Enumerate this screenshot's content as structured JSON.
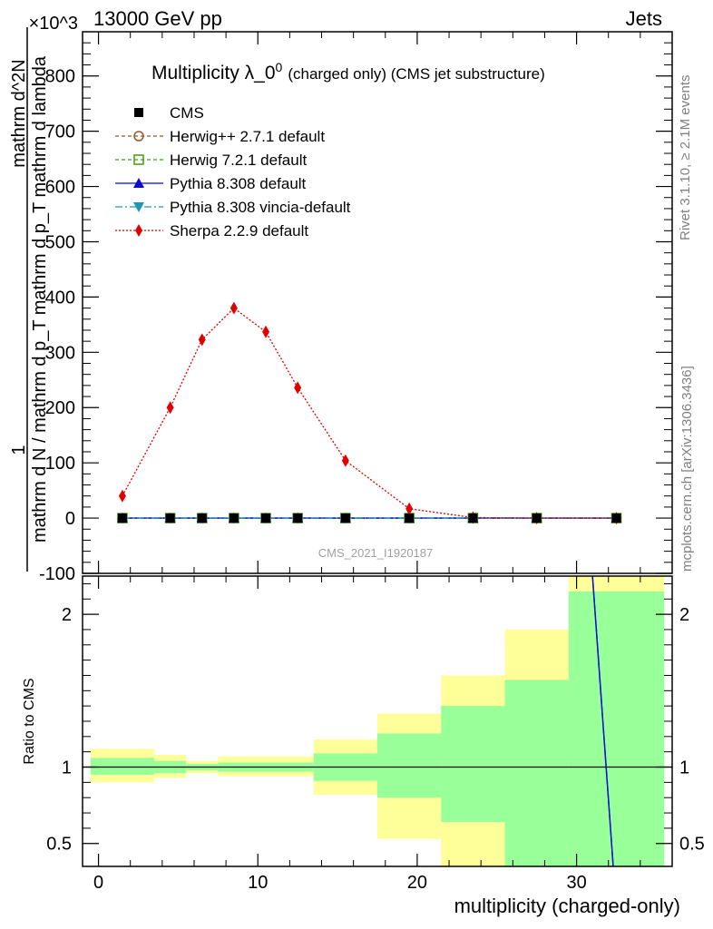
{
  "header": {
    "left": "13000 GeV pp",
    "right": "Jets"
  },
  "side_labels": {
    "rivet": "Rivet 3.1.10, ≥ 2.1M events",
    "mcplots": "mcplots.cern.ch [arXiv:1306.3436]"
  },
  "watermark": "CMS_2021_I1920187",
  "colors": {
    "cms": "#000000",
    "herwigpp": "#a0522d",
    "herwig7": "#4a9a0a",
    "pythia": "#0a0ad0",
    "vincia": "#1a9ab0",
    "sherpa": "#e00000",
    "band_outer": "#ffff99",
    "band_inner": "#99ff99"
  },
  "chart_data": [
    {
      "type": "line",
      "title_main": "Multiplicity λ_0",
      "title_sup": "0",
      "title_sub": "(charged only) (CMS jet substructure)",
      "ylabel_top": "1",
      "ylabel_bottom": "mathrm d N / mathrm d p_T mathrm d p_T mathrm d lambda",
      "ylabel_top2": "mathrm d^2N",
      "y_exponent": "×10^3",
      "ylim": [
        -100,
        880
      ],
      "yticks": [
        -100,
        0,
        100,
        200,
        300,
        400,
        500,
        600,
        700,
        800
      ],
      "xlim": [
        -1,
        36
      ],
      "x": [
        1.5,
        4.5,
        6.5,
        8.5,
        10.5,
        12.5,
        15.5,
        19.5,
        23.5,
        27.5,
        32.5
      ],
      "series": [
        {
          "name": "CMS",
          "marker": "square-filled",
          "values": [
            0,
            0,
            0,
            0,
            0,
            0,
            0,
            0,
            0,
            0,
            0
          ]
        },
        {
          "name": "Herwig++ 2.7.1 default",
          "marker": "circle-open",
          "values": [
            0,
            0,
            0,
            0,
            0,
            0,
            0,
            0,
            0,
            0,
            0
          ]
        },
        {
          "name": "Herwig 7.2.1 default",
          "marker": "square-open",
          "values": [
            0,
            0,
            0,
            0,
            0,
            0,
            0,
            0,
            0,
            0,
            0
          ]
        },
        {
          "name": "Pythia 8.308 default",
          "marker": "triangle-up",
          "values": [
            0,
            0,
            0,
            0,
            0,
            0,
            0,
            0,
            0,
            0,
            0
          ]
        },
        {
          "name": "Pythia 8.308 vincia-default",
          "marker": "triangle-down",
          "values": [
            0,
            0,
            0,
            0,
            0,
            0,
            0,
            0,
            0,
            0,
            0
          ]
        },
        {
          "name": "Sherpa 2.2.9 default",
          "marker": "diamond",
          "values": [
            40,
            200,
            323,
            380,
            337,
            236,
            104,
            17,
            1,
            0,
            0
          ]
        }
      ]
    },
    {
      "type": "area",
      "ylabel": "Ratio to CMS",
      "xlabel": "multiplicity (charged-only)",
      "ylim": [
        0.35,
        2.25
      ],
      "yticks": [
        0.5,
        1,
        2
      ],
      "ytick_labels": [
        "0.5",
        "1",
        "2"
      ],
      "xticks": [
        0,
        10,
        20,
        30
      ],
      "xtick_labels": [
        "0",
        "10",
        "20",
        "30"
      ],
      "bins": [
        {
          "lo": -0.5,
          "hi": 3.5,
          "outer": [
            0.9,
            1.12
          ],
          "inner": [
            0.95,
            1.06
          ]
        },
        {
          "lo": 3.5,
          "hi": 5.5,
          "outer": [
            0.93,
            1.08
          ],
          "inner": [
            0.96,
            1.04
          ]
        },
        {
          "lo": 5.5,
          "hi": 7.5,
          "outer": [
            0.96,
            1.04
          ],
          "inner": [
            0.98,
            1.02
          ]
        },
        {
          "lo": 7.5,
          "hi": 13.5,
          "outer": [
            0.94,
            1.07
          ],
          "inner": [
            0.97,
            1.03
          ]
        },
        {
          "lo": 13.5,
          "hi": 17.5,
          "outer": [
            0.82,
            1.18
          ],
          "inner": [
            0.91,
            1.09
          ]
        },
        {
          "lo": 17.5,
          "hi": 21.5,
          "outer": [
            0.53,
            1.35
          ],
          "inner": [
            0.8,
            1.22
          ]
        },
        {
          "lo": 21.5,
          "hi": 25.5,
          "outer": [
            0.35,
            1.6
          ],
          "inner": [
            0.64,
            1.4
          ]
        },
        {
          "lo": 25.5,
          "hi": 29.5,
          "outer": [
            0.35,
            1.9
          ],
          "inner": [
            0.35,
            1.57
          ]
        },
        {
          "lo": 29.5,
          "hi": 35.5,
          "outer": [
            0.35,
            2.25
          ],
          "inner": [
            0.35,
            2.15
          ]
        }
      ],
      "ratio_line": {
        "x": [
          31,
          32.3
        ],
        "y": [
          2.25,
          0.35
        ]
      }
    }
  ]
}
